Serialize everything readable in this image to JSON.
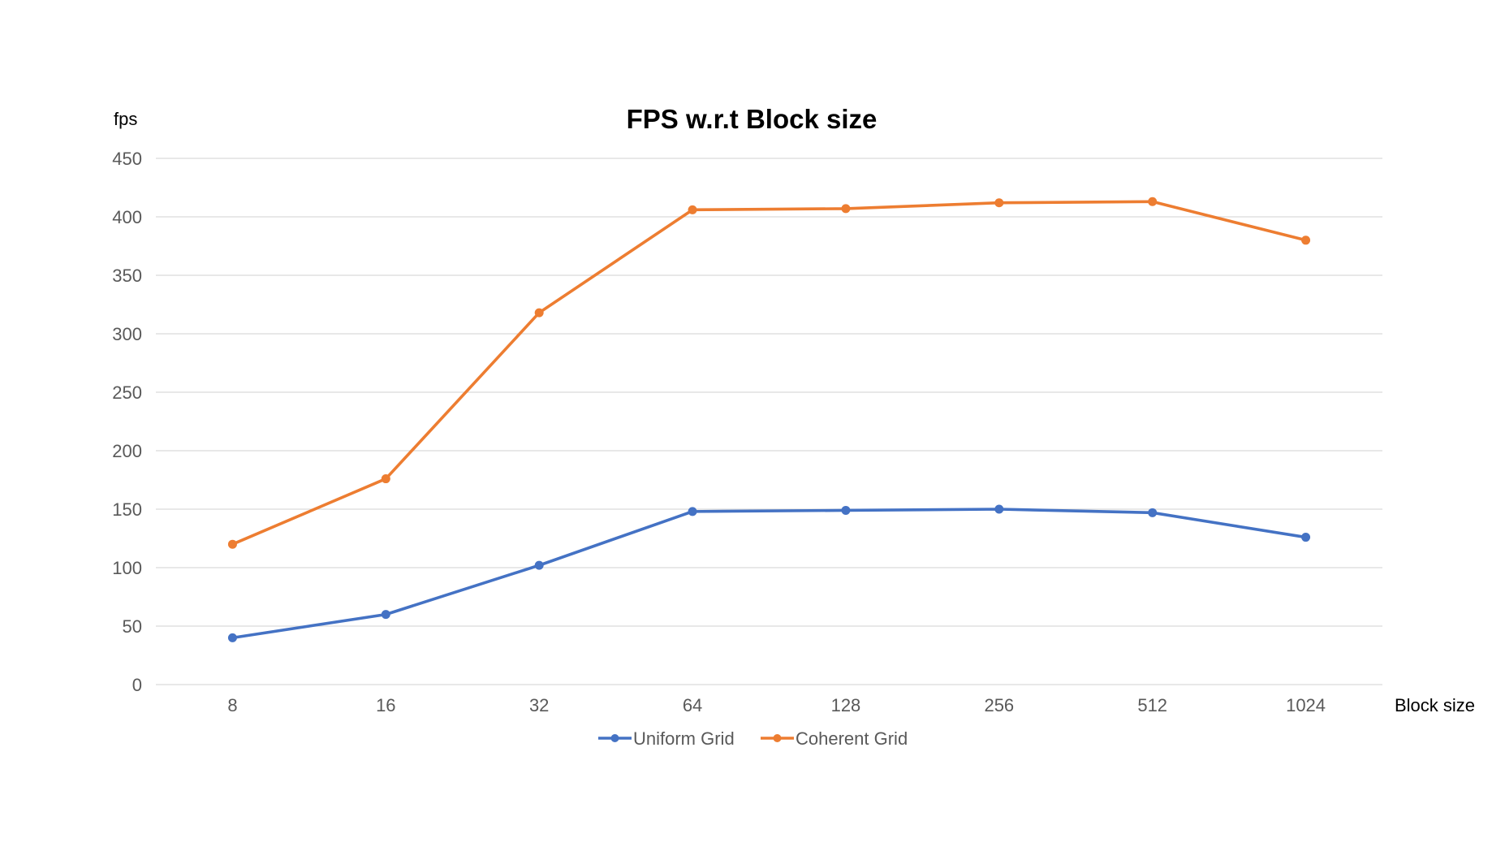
{
  "chart_data": {
    "type": "line",
    "title": "FPS w.r.t Block size",
    "xlabel": "Block size",
    "ylabel": "fps",
    "categories": [
      "8",
      "16",
      "32",
      "64",
      "128",
      "256",
      "512",
      "1024"
    ],
    "yticks": [
      "0",
      "50",
      "100",
      "150",
      "200",
      "250",
      "300",
      "350",
      "400",
      "450"
    ],
    "ylim": [
      0,
      450
    ],
    "grid": true,
    "legend_position": "bottom",
    "series": [
      {
        "name": "Uniform Grid",
        "color": "#4472c4",
        "values": [
          40,
          60,
          102,
          148,
          149,
          150,
          147,
          126
        ]
      },
      {
        "name": "Coherent Grid",
        "color": "#ed7d31",
        "values": [
          120,
          176,
          318,
          406,
          407,
          412,
          413,
          380
        ]
      }
    ]
  }
}
